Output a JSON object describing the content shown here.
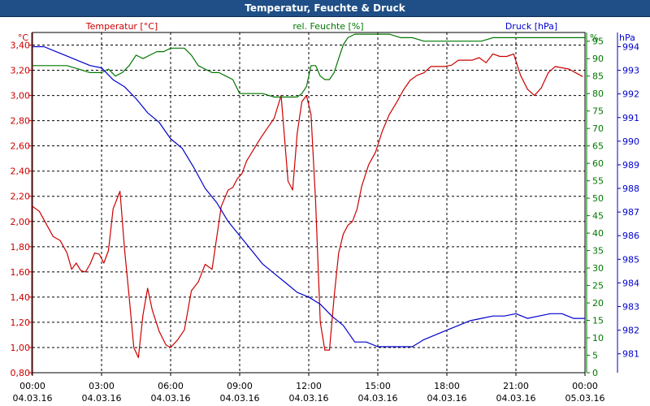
{
  "window": {
    "title": "Temperatur, Feuchte & Druck"
  },
  "colors": {
    "temperature": "#cc0000",
    "humidity": "#007700",
    "pressure": "#0000cc",
    "grid": "#000000",
    "titlebar": "#1f4f86"
  },
  "chart_data": {
    "type": "line",
    "title": "Temperatur, Feuchte & Druck",
    "grid": true,
    "x_ticks": [
      {
        "time": "00:00",
        "date": "04.03.16"
      },
      {
        "time": "03:00",
        "date": "04.03.16"
      },
      {
        "time": "06:00",
        "date": "04.03.16"
      },
      {
        "time": "09:00",
        "date": "04.03.16"
      },
      {
        "time": "12:00",
        "date": "04.03.16"
      },
      {
        "time": "15:00",
        "date": "04.03.16"
      },
      {
        "time": "18:00",
        "date": "04.03.16"
      },
      {
        "time": "21:00",
        "date": "04.03.16"
      },
      {
        "time": "00:00",
        "date": "05.03.16"
      }
    ],
    "axes": {
      "temperature": {
        "label": "Temperatur [°C]",
        "unit": "°C",
        "range": [
          0.8,
          3.5
        ],
        "ticks": [
          "0,80",
          "1,00",
          "1,20",
          "1,40",
          "1,60",
          "1,80",
          "2,00",
          "2,20",
          "2,40",
          "2,60",
          "2,80",
          "3,00",
          "3,20",
          "3,40"
        ]
      },
      "humidity": {
        "label": "rel. Feuchte [%]",
        "unit": "%",
        "range": [
          0,
          97.5
        ],
        "ticks": [
          "0",
          "5",
          "10",
          "15",
          "20",
          "25",
          "30",
          "35",
          "40",
          "45",
          "50",
          "55",
          "60",
          "65",
          "70",
          "75",
          "80",
          "85",
          "90",
          "95"
        ]
      },
      "pressure": {
        "label": "Druck [hPa]",
        "unit": "hPa",
        "range": [
          980.2,
          994.6
        ],
        "ticks": [
          "981",
          "982",
          "983",
          "984",
          "985",
          "986",
          "987",
          "988",
          "989",
          "990",
          "991",
          "992",
          "993",
          "994"
        ]
      }
    },
    "series": [
      {
        "name": "Temperatur [°C]",
        "axis": "temperature",
        "color": "#cc0000",
        "x_hours": [
          0,
          0.3,
          0.6,
          0.9,
          1.2,
          1.5,
          1.7,
          1.9,
          2.1,
          2.3,
          2.5,
          2.7,
          2.9,
          3.1,
          3.3,
          3.5,
          3.8,
          4.0,
          4.2,
          4.4,
          4.6,
          4.8,
          5.0,
          5.2,
          5.5,
          5.8,
          6.0,
          6.3,
          6.6,
          6.9,
          7.2,
          7.5,
          7.8,
          8.2,
          8.5,
          8.7,
          8.9,
          9.1,
          9.3,
          9.6,
          9.9,
          10.2,
          10.5,
          10.8,
          11.1,
          11.3,
          11.5,
          11.7,
          11.9,
          12.1,
          12.3,
          12.5,
          12.7,
          12.9,
          13.1,
          13.3,
          13.5,
          13.7,
          13.9,
          14.1,
          14.3,
          14.6,
          14.9,
          15.2,
          15.5,
          15.8,
          16.1,
          16.4,
          16.7,
          17.0,
          17.3,
          17.6,
          17.9,
          18.2,
          18.5,
          18.8,
          19.1,
          19.4,
          19.7,
          20.0,
          20.3,
          20.6,
          20.9,
          21.2,
          21.5,
          21.8,
          22.1,
          22.4,
          22.7,
          23.0,
          23.3,
          23.6,
          23.9
        ],
        "values": [
          2.12,
          2.08,
          1.98,
          1.88,
          1.85,
          1.75,
          1.62,
          1.67,
          1.61,
          1.6,
          1.66,
          1.75,
          1.74,
          1.67,
          1.77,
          2.1,
          2.24,
          1.78,
          1.4,
          1.0,
          0.92,
          1.26,
          1.47,
          1.3,
          1.13,
          1.02,
          1.0,
          1.06,
          1.14,
          1.45,
          1.52,
          1.66,
          1.62,
          2.12,
          2.25,
          2.27,
          2.34,
          2.38,
          2.48,
          2.57,
          2.66,
          2.74,
          2.82,
          3.0,
          2.32,
          2.25,
          2.7,
          2.95,
          3.0,
          2.85,
          2.15,
          1.2,
          0.98,
          0.98,
          1.4,
          1.75,
          1.9,
          1.97,
          2.0,
          2.1,
          2.28,
          2.45,
          2.55,
          2.72,
          2.85,
          2.94,
          3.04,
          3.12,
          3.16,
          3.18,
          3.23,
          3.23,
          3.23,
          3.24,
          3.28,
          3.28,
          3.28,
          3.3,
          3.26,
          3.33,
          3.31,
          3.31,
          3.33,
          3.16,
          3.05,
          3.0,
          3.06,
          3.18,
          3.23,
          3.22,
          3.21,
          3.18,
          3.15
        ]
      },
      {
        "name": "rel. Feuchte [%]",
        "axis": "humidity",
        "color": "#007700",
        "x_hours": [
          0,
          0.5,
          1.0,
          1.5,
          2.0,
          2.5,
          3.0,
          3.3,
          3.6,
          3.9,
          4.2,
          4.5,
          4.8,
          5.1,
          5.4,
          5.7,
          6.0,
          6.3,
          6.6,
          6.9,
          7.2,
          7.5,
          7.8,
          8.1,
          8.4,
          8.7,
          9.0,
          9.5,
          10.0,
          10.5,
          11.0,
          11.5,
          11.7,
          11.9,
          12.1,
          12.3,
          12.5,
          12.7,
          12.9,
          13.1,
          13.3,
          13.5,
          13.7,
          14.0,
          14.3,
          14.6,
          15.0,
          15.5,
          16.0,
          16.5,
          17.0,
          17.5,
          18.0,
          18.5,
          19.0,
          19.5,
          20.0,
          20.5,
          21.0,
          21.5,
          22.0,
          22.5,
          23.0,
          23.5,
          24.0
        ],
        "values": [
          88,
          88,
          88,
          88,
          87,
          86,
          86,
          87,
          85,
          86,
          88,
          91,
          90,
          91,
          92,
          92,
          93,
          93,
          93,
          91,
          88,
          87,
          86,
          86,
          85,
          84,
          80,
          80,
          80,
          79,
          79,
          79,
          80,
          82,
          88,
          88,
          85,
          84,
          84,
          86,
          90,
          94,
          96,
          97,
          97,
          97,
          97,
          97,
          96,
          96,
          95,
          95,
          95,
          95,
          95,
          95,
          96,
          96,
          96,
          96,
          96,
          96,
          96,
          96,
          96
        ]
      },
      {
        "name": "Druck [hPa]",
        "axis": "pressure",
        "color": "#0000cc",
        "x_hours": [
          0,
          0.5,
          1.0,
          1.5,
          2.0,
          2.5,
          3.0,
          3.5,
          4.0,
          4.5,
          5.0,
          5.5,
          6.0,
          6.5,
          7.0,
          7.5,
          8.0,
          8.5,
          9.0,
          9.5,
          10.0,
          10.5,
          11.0,
          11.5,
          12.0,
          12.5,
          13.0,
          13.5,
          14.0,
          14.5,
          15.0,
          15.5,
          16.0,
          16.5,
          17.0,
          17.5,
          18.0,
          18.5,
          19.0,
          19.5,
          20.0,
          20.5,
          21.0,
          21.5,
          22.0,
          22.5,
          23.0,
          23.5,
          24.0
        ],
        "values": [
          994.0,
          994.0,
          993.8,
          993.6,
          993.4,
          993.2,
          993.1,
          992.6,
          992.3,
          991.8,
          991.2,
          990.8,
          990.1,
          989.7,
          988.9,
          988.0,
          987.4,
          986.6,
          986.0,
          985.4,
          984.8,
          984.4,
          984.0,
          983.6,
          983.4,
          983.1,
          982.6,
          982.2,
          981.5,
          981.5,
          981.3,
          981.3,
          981.3,
          981.3,
          981.6,
          981.8,
          982.0,
          982.2,
          982.4,
          982.5,
          982.6,
          982.6,
          982.7,
          982.5,
          982.6,
          982.7,
          982.7,
          982.5,
          982.5
        ]
      }
    ]
  }
}
